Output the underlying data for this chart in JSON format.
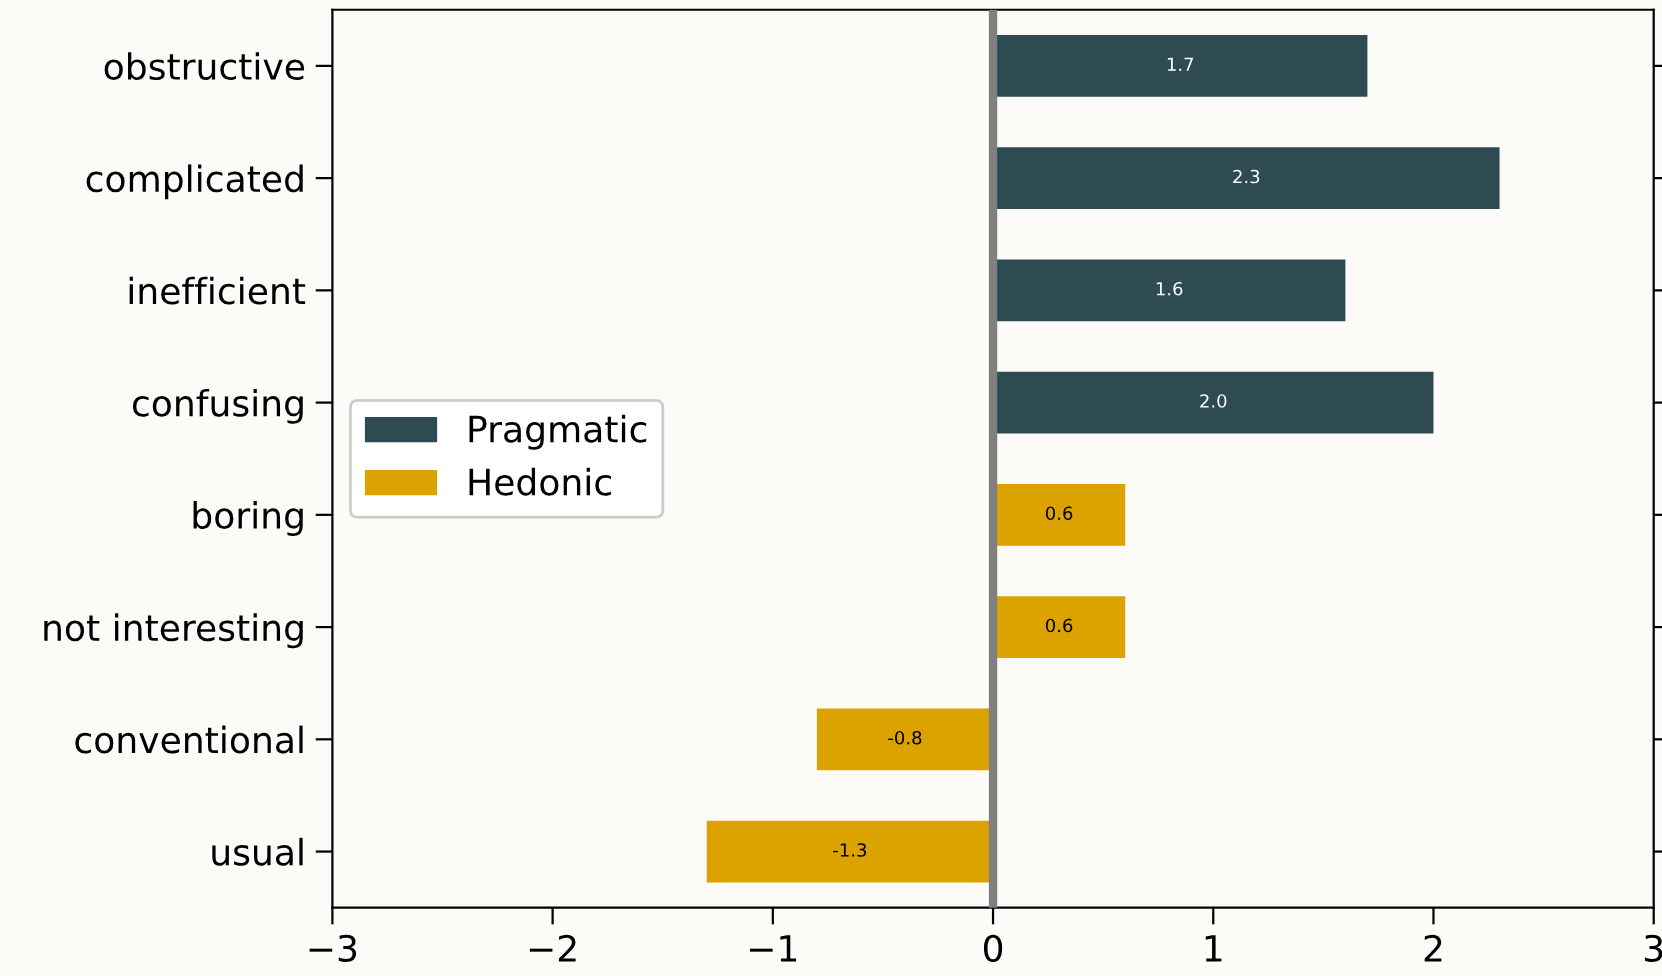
{
  "chart_data": {
    "type": "bar",
    "orientation": "horizontal",
    "categories": [
      "obstructive",
      "complicated",
      "inefficient",
      "confusing",
      "boring",
      "not interesting",
      "conventional",
      "usual"
    ],
    "series": [
      {
        "name": "Pragmatic",
        "color": "#2e4a52",
        "values": [
          1.7,
          2.3,
          1.6,
          2.0,
          null,
          null,
          null,
          null
        ],
        "value_labels": [
          "1.7",
          "2.3",
          "1.6",
          "2.0",
          null,
          null,
          null,
          null
        ]
      },
      {
        "name": "Hedonic",
        "color": "#dca200",
        "values": [
          null,
          null,
          null,
          null,
          0.6,
          0.6,
          -0.8,
          -1.3
        ],
        "value_labels": [
          null,
          null,
          null,
          null,
          "0.6",
          "0.6",
          "-0.8",
          "-1.3"
        ]
      }
    ],
    "xlim": [
      -3,
      3
    ],
    "xticks": [
      {
        "value": -3,
        "label": "−3"
      },
      {
        "value": -2,
        "label": "−2"
      },
      {
        "value": -1,
        "label": "−1"
      },
      0,
      1,
      2,
      3
    ],
    "ref_lines": [
      {
        "axis": "x",
        "value": 0,
        "color": "#808080"
      }
    ],
    "legend": "center left",
    "grid": false
  }
}
